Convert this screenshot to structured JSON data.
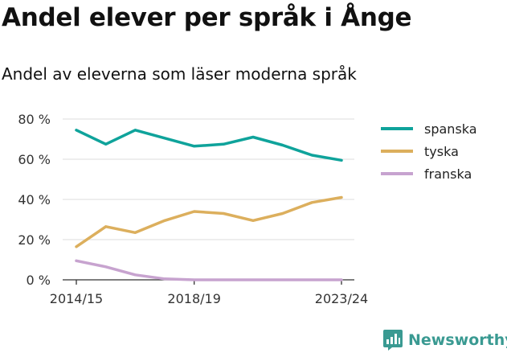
{
  "title": "Andel elever per språk i Ånge",
  "subtitle": "Andel av eleverna som läser moderna språk",
  "brand": {
    "name": "Newsworthy",
    "color": "#3a9a92",
    "icon": "bar-chart-logo-icon"
  },
  "chart_data": {
    "type": "line",
    "x": [
      "2014/15",
      "2015/16",
      "2016/17",
      "2017/18",
      "2018/19",
      "2019/20",
      "2020/21",
      "2021/22",
      "2022/23",
      "2023/24"
    ],
    "x_tick_labels": [
      "2014/15",
      "2018/19",
      "2023/24"
    ],
    "y_ticks": [
      0,
      20,
      40,
      60,
      80
    ],
    "y_tick_labels": [
      "0 %",
      "20 %",
      "40 %",
      "60 %",
      "80 %"
    ],
    "ylim": [
      0,
      80
    ],
    "grid": true,
    "legend_position": "right",
    "series": [
      {
        "name": "spanska",
        "color": "#0fa39b",
        "values": [
          74.5,
          67.5,
          74.5,
          70.5,
          66.5,
          67.5,
          71,
          67,
          62,
          59.5
        ]
      },
      {
        "name": "tyska",
        "color": "#dcaf5d",
        "values": [
          16.5,
          26.5,
          23.5,
          29.5,
          34,
          33,
          29.5,
          33,
          38.5,
          41
        ]
      },
      {
        "name": "franska",
        "color": "#c7a3cf",
        "values": [
          9.5,
          6.5,
          2.5,
          0.5,
          0,
          0,
          0,
          0,
          0,
          0
        ]
      }
    ]
  }
}
